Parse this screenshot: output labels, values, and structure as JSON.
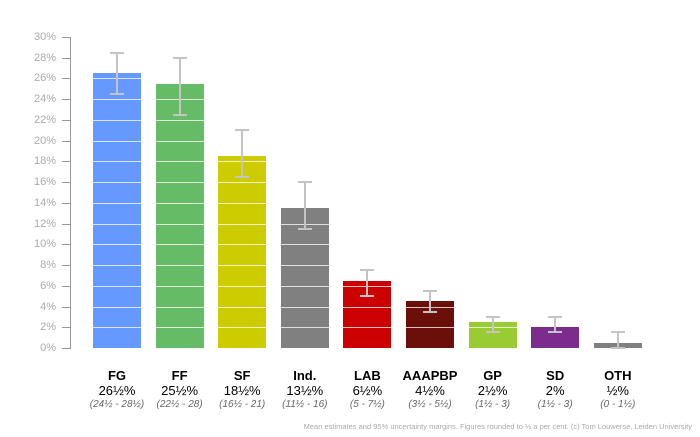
{
  "chart_data": {
    "type": "bar",
    "title": "",
    "xlabel": "",
    "ylabel": "",
    "ylim": [
      0,
      30
    ],
    "yticks": [
      "0%",
      "2%",
      "4%",
      "6%",
      "8%",
      "10%",
      "12%",
      "14%",
      "16%",
      "18%",
      "20%",
      "22%",
      "24%",
      "26%",
      "28%",
      "30%"
    ],
    "categories": [
      "FG",
      "FF",
      "SF",
      "Ind.",
      "LAB",
      "AAAPBP",
      "GP",
      "SD",
      "OTH"
    ],
    "values": [
      26.5,
      25.5,
      18.5,
      13.5,
      6.5,
      4.5,
      2.5,
      2,
      0.5
    ],
    "ci_low": [
      24.5,
      22.5,
      16.5,
      11.5,
      5,
      3.5,
      1.5,
      1.5,
      0
    ],
    "ci_high": [
      28.5,
      28,
      21,
      16,
      7.5,
      5.5,
      3,
      3,
      1.5
    ],
    "colors": [
      "#6699ff",
      "#66bb66",
      "#cccc00",
      "#808080",
      "#cc0000",
      "#6b0f0a",
      "#99cc33",
      "#7b2d8e",
      "#808080"
    ],
    "value_labels": [
      "26½%",
      "25½%",
      "18½%",
      "13½%",
      "6½%",
      "4½%",
      "2½%",
      "2%",
      "½%"
    ],
    "range_labels": [
      "(24½ - 28½)",
      "(22½ - 28)",
      "(16½ - 21)",
      "(11½ - 16)",
      "(5 - 7½)",
      "(3½ - 5½)",
      "(1½ - 3)",
      "(1½ - 3)",
      "(0 - 1½)"
    ],
    "grid": true,
    "legend": "none"
  },
  "footer": "Mean estimates and 95% uncertainty margins. Figures rounded to ½ a per cent. (c) Tom Louwerse, Leiden University"
}
